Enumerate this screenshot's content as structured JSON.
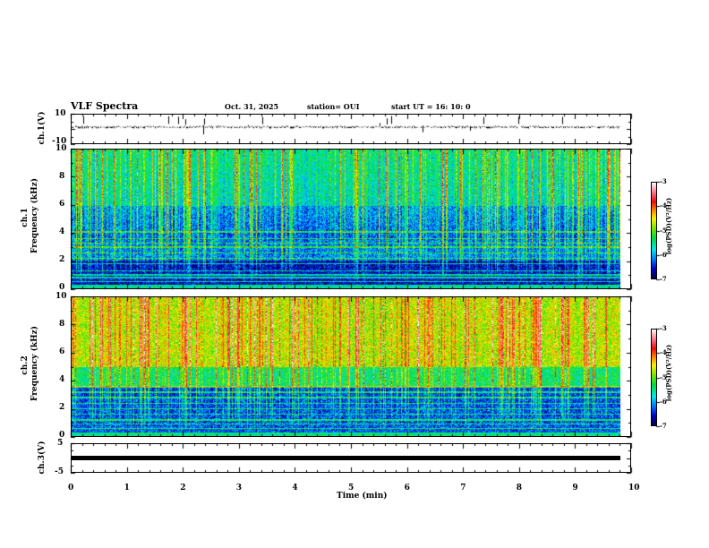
{
  "header": {
    "title": "VLF Spectra",
    "date": "Oct. 31, 2025",
    "station": "station= OUI",
    "start": "start  UT =   16: 10: 0"
  },
  "chart_data": [
    {
      "type": "line",
      "name": "ch1-waveform",
      "ylabel": "ch.1(V)",
      "ylim": [
        -10,
        10
      ],
      "yticks": [
        "10",
        "-10"
      ],
      "xlim": [
        0,
        10
      ]
    },
    {
      "type": "heatmap",
      "name": "ch1-spectrogram",
      "ylabel_top": "ch.1",
      "ylabel": "Frequency (kHz)",
      "ylim": [
        0,
        10
      ],
      "yticks": [
        "0",
        "2",
        "4",
        "6",
        "8",
        "10"
      ],
      "xlim": [
        0,
        10
      ],
      "colorbar": {
        "label": "log(PSD)(V²/Hz)",
        "range": [
          -7,
          -3
        ],
        "ticks": [
          "-3",
          "-4",
          "-5",
          "-6",
          "-7"
        ]
      }
    },
    {
      "type": "heatmap",
      "name": "ch2-spectrogram",
      "ylabel_top": "ch.2",
      "ylabel": "Frequency (kHz)",
      "ylim": [
        0,
        10
      ],
      "yticks": [
        "0",
        "2",
        "4",
        "6",
        "8",
        "10"
      ],
      "xlim": [
        0,
        10
      ],
      "colorbar": {
        "label": "log(PSD)(V²/Hz)",
        "range": [
          -7,
          -3
        ],
        "ticks": [
          "-3",
          "-4",
          "-5",
          "-6",
          "-7"
        ]
      }
    },
    {
      "type": "line",
      "name": "ch3-waveform",
      "ylabel": "ch.3(V)",
      "ylim": [
        -5,
        5
      ],
      "yticks": [
        "5",
        "-5"
      ],
      "xlim": [
        0,
        10
      ],
      "value": -2,
      "data_end_min": 9.83
    }
  ],
  "xaxis": {
    "label": "Time  (min)",
    "ticks": [
      "0",
      "1",
      "2",
      "3",
      "4",
      "5",
      "6",
      "7",
      "8",
      "9",
      "10"
    ]
  }
}
